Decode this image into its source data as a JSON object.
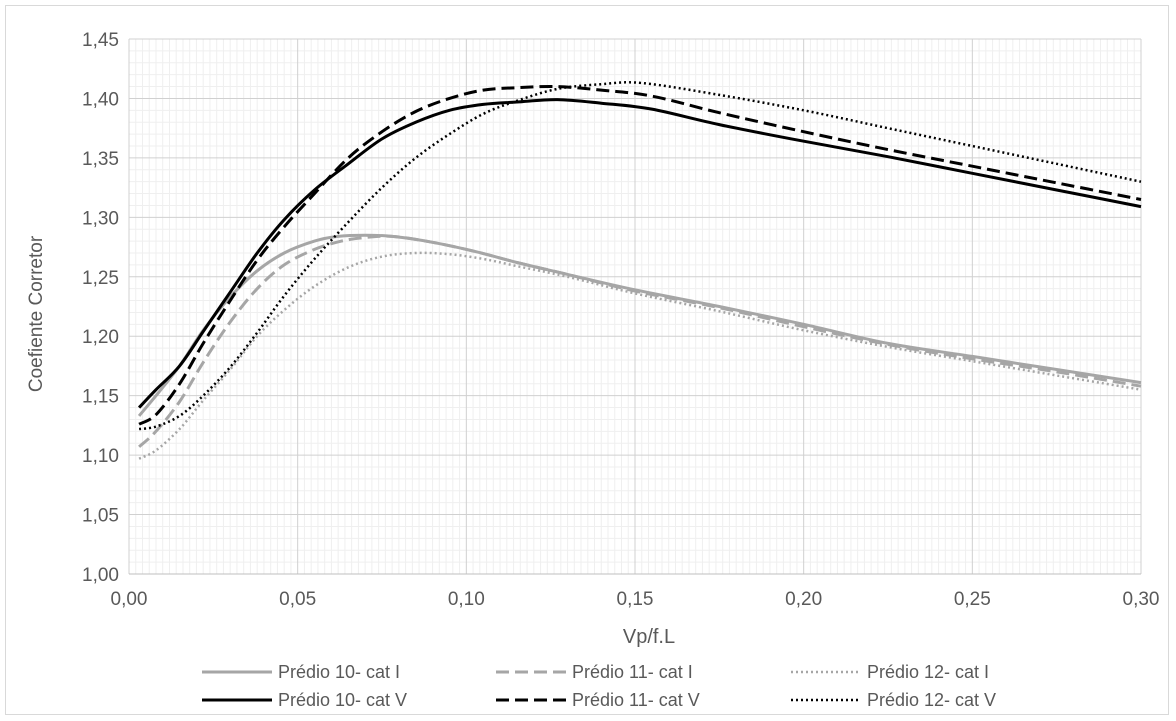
{
  "chart_data": {
    "type": "line",
    "title": "",
    "xlabel": "Vp/f.L",
    "ylabel": "Coefiente Corretor",
    "xlim": [
      0,
      0.3
    ],
    "ylim": [
      1.0,
      1.45
    ],
    "grid": true,
    "minor_grid": true,
    "legend_position": "bottom",
    "x_tick_labels": [
      "0,00",
      "0,05",
      "0,10",
      "0,15",
      "0,20",
      "0,25",
      "0,30"
    ],
    "y_tick_labels": [
      "1,00",
      "1,05",
      "1,10",
      "1,15",
      "1,20",
      "1,25",
      "1,30",
      "1,35",
      "1,40",
      "1,45"
    ],
    "series": [
      {
        "name": "Prédio 10- cat I",
        "color": "#a6a6a6",
        "dash": "solid",
        "points": [
          [
            0.003,
            1.133
          ],
          [
            0.008,
            1.15
          ],
          [
            0.015,
            1.175
          ],
          [
            0.022,
            1.205
          ],
          [
            0.03,
            1.233
          ],
          [
            0.038,
            1.255
          ],
          [
            0.046,
            1.27
          ],
          [
            0.055,
            1.28
          ],
          [
            0.062,
            1.284
          ],
          [
            0.07,
            1.285
          ],
          [
            0.078,
            1.284
          ],
          [
            0.09,
            1.279
          ],
          [
            0.103,
            1.271
          ],
          [
            0.115,
            1.262
          ],
          [
            0.13,
            1.252
          ],
          [
            0.15,
            1.239
          ],
          [
            0.175,
            1.225
          ],
          [
            0.2,
            1.21
          ],
          [
            0.225,
            1.194
          ],
          [
            0.25,
            1.183
          ],
          [
            0.275,
            1.172
          ],
          [
            0.3,
            1.161
          ]
        ]
      },
      {
        "name": "Prédio 11- cat I",
        "color": "#a6a6a6",
        "dash": "dashed",
        "points": [
          [
            0.003,
            1.107
          ],
          [
            0.008,
            1.12
          ],
          [
            0.015,
            1.145
          ],
          [
            0.022,
            1.178
          ],
          [
            0.03,
            1.212
          ],
          [
            0.038,
            1.24
          ],
          [
            0.046,
            1.26
          ],
          [
            0.055,
            1.273
          ],
          [
            0.063,
            1.28
          ],
          [
            0.07,
            1.283
          ],
          [
            0.078,
            1.284
          ],
          [
            0.09,
            1.279
          ],
          [
            0.103,
            1.271
          ],
          [
            0.115,
            1.262
          ],
          [
            0.13,
            1.252
          ],
          [
            0.15,
            1.238
          ],
          [
            0.175,
            1.224
          ],
          [
            0.2,
            1.208
          ],
          [
            0.225,
            1.193
          ],
          [
            0.25,
            1.181
          ],
          [
            0.275,
            1.17
          ],
          [
            0.3,
            1.158
          ]
        ]
      },
      {
        "name": "Prédio 12- cat I",
        "color": "#a6a6a6",
        "dash": "dotted",
        "points": [
          [
            0.003,
            1.097
          ],
          [
            0.008,
            1.104
          ],
          [
            0.015,
            1.122
          ],
          [
            0.022,
            1.146
          ],
          [
            0.03,
            1.172
          ],
          [
            0.038,
            1.2
          ],
          [
            0.046,
            1.222
          ],
          [
            0.055,
            1.242
          ],
          [
            0.065,
            1.258
          ],
          [
            0.075,
            1.267
          ],
          [
            0.085,
            1.27
          ],
          [
            0.095,
            1.269
          ],
          [
            0.105,
            1.265
          ],
          [
            0.115,
            1.259
          ],
          [
            0.13,
            1.25
          ],
          [
            0.15,
            1.236
          ],
          [
            0.175,
            1.221
          ],
          [
            0.2,
            1.205
          ],
          [
            0.225,
            1.191
          ],
          [
            0.25,
            1.179
          ],
          [
            0.275,
            1.167
          ],
          [
            0.3,
            1.155
          ]
        ]
      },
      {
        "name": "Prédio 10- cat V",
        "color": "#000000",
        "dash": "solid",
        "points": [
          [
            0.003,
            1.14
          ],
          [
            0.008,
            1.155
          ],
          [
            0.015,
            1.175
          ],
          [
            0.022,
            1.204
          ],
          [
            0.03,
            1.237
          ],
          [
            0.038,
            1.27
          ],
          [
            0.046,
            1.298
          ],
          [
            0.055,
            1.323
          ],
          [
            0.065,
            1.345
          ],
          [
            0.075,
            1.366
          ],
          [
            0.085,
            1.38
          ],
          [
            0.095,
            1.39
          ],
          [
            0.105,
            1.395
          ],
          [
            0.115,
            1.397
          ],
          [
            0.127,
            1.399
          ],
          [
            0.14,
            1.396
          ],
          [
            0.155,
            1.391
          ],
          [
            0.175,
            1.378
          ],
          [
            0.2,
            1.364
          ],
          [
            0.225,
            1.351
          ],
          [
            0.25,
            1.337
          ],
          [
            0.275,
            1.323
          ],
          [
            0.3,
            1.309
          ]
        ]
      },
      {
        "name": "Prédio 11- cat V",
        "color": "#000000",
        "dash": "dashed",
        "points": [
          [
            0.003,
            1.126
          ],
          [
            0.008,
            1.134
          ],
          [
            0.015,
            1.16
          ],
          [
            0.022,
            1.194
          ],
          [
            0.03,
            1.23
          ],
          [
            0.038,
            1.264
          ],
          [
            0.046,
            1.292
          ],
          [
            0.055,
            1.32
          ],
          [
            0.065,
            1.35
          ],
          [
            0.075,
            1.372
          ],
          [
            0.085,
            1.389
          ],
          [
            0.095,
            1.4
          ],
          [
            0.105,
            1.407
          ],
          [
            0.115,
            1.409
          ],
          [
            0.127,
            1.41
          ],
          [
            0.14,
            1.407
          ],
          [
            0.155,
            1.402
          ],
          [
            0.175,
            1.388
          ],
          [
            0.2,
            1.372
          ],
          [
            0.225,
            1.357
          ],
          [
            0.25,
            1.343
          ],
          [
            0.275,
            1.329
          ],
          [
            0.3,
            1.315
          ]
        ]
      },
      {
        "name": "Prédio 12- cat V",
        "color": "#000000",
        "dash": "dotted",
        "points": [
          [
            0.003,
            1.122
          ],
          [
            0.008,
            1.124
          ],
          [
            0.015,
            1.133
          ],
          [
            0.022,
            1.15
          ],
          [
            0.03,
            1.174
          ],
          [
            0.038,
            1.203
          ],
          [
            0.046,
            1.234
          ],
          [
            0.055,
            1.265
          ],
          [
            0.065,
            1.296
          ],
          [
            0.075,
            1.325
          ],
          [
            0.085,
            1.35
          ],
          [
            0.095,
            1.37
          ],
          [
            0.105,
            1.387
          ],
          [
            0.115,
            1.398
          ],
          [
            0.127,
            1.408
          ],
          [
            0.14,
            1.412
          ],
          [
            0.152,
            1.413
          ],
          [
            0.175,
            1.403
          ],
          [
            0.2,
            1.39
          ],
          [
            0.225,
            1.375
          ],
          [
            0.25,
            1.36
          ],
          [
            0.275,
            1.345
          ],
          [
            0.3,
            1.33
          ]
        ]
      }
    ]
  }
}
